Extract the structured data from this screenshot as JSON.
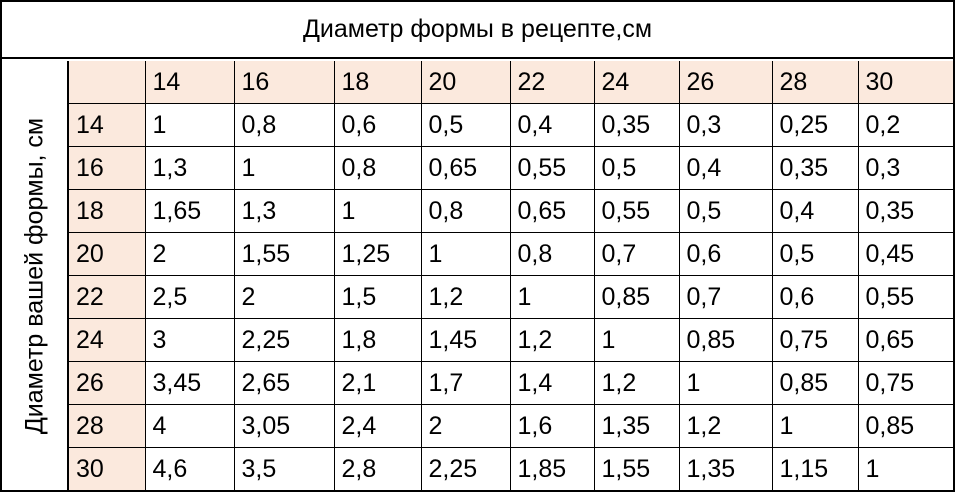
{
  "title": "Диаметр формы в рецепте,см",
  "side_title": "Диаметр вашей формы, см",
  "colors": {
    "header_fill": "#fbe9dd",
    "border": "#000000"
  },
  "columns": [
    "14",
    "16",
    "18",
    "20",
    "22",
    "24",
    "26",
    "28",
    "30"
  ],
  "rows": [
    {
      "label": "14",
      "values": [
        "1",
        "0,8",
        "0,6",
        "0,5",
        "0,4",
        "0,35",
        "0,3",
        "0,25",
        "0,2"
      ]
    },
    {
      "label": "16",
      "values": [
        "1,3",
        "1",
        "0,8",
        "0,65",
        "0,55",
        "0,5",
        "0,4",
        "0,35",
        "0,3"
      ]
    },
    {
      "label": "18",
      "values": [
        "1,65",
        "1,3",
        "1",
        "0,8",
        "0,65",
        "0,55",
        "0,5",
        "0,4",
        "0,35"
      ]
    },
    {
      "label": "20",
      "values": [
        "2",
        "1,55",
        "1,25",
        "1",
        "0,8",
        "0,7",
        "0,6",
        "0,5",
        "0,45"
      ]
    },
    {
      "label": "22",
      "values": [
        "2,5",
        "2",
        "1,5",
        "1,2",
        "1",
        "0,85",
        "0,7",
        "0,6",
        "0,55"
      ]
    },
    {
      "label": "24",
      "values": [
        "3",
        "2,25",
        "1,8",
        "1,45",
        "1,2",
        "1",
        "0,85",
        "0,75",
        "0,65"
      ]
    },
    {
      "label": "26",
      "values": [
        "3,45",
        "2,65",
        "2,1",
        "1,7",
        "1,4",
        "1,2",
        "1",
        "0,85",
        "0,75"
      ]
    },
    {
      "label": "28",
      "values": [
        "4",
        "3,05",
        "2,4",
        "2",
        "1,6",
        "1,35",
        "1,2",
        "1",
        "0,85"
      ]
    },
    {
      "label": "30",
      "values": [
        "4,6",
        "3,5",
        "2,8",
        "2,25",
        "1,85",
        "1,55",
        "1,35",
        "1,15",
        "1"
      ]
    }
  ]
}
